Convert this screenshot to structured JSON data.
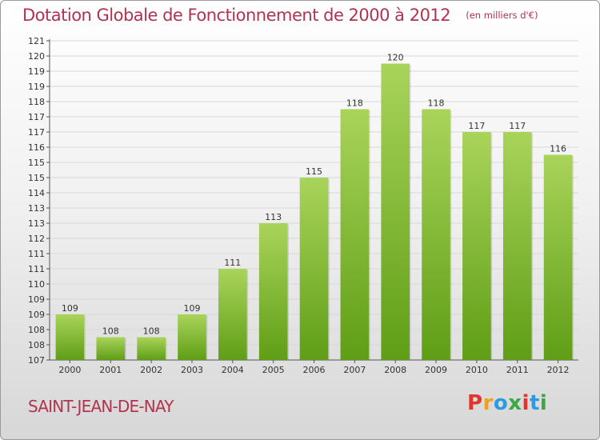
{
  "header": {
    "title": "Dotation Globale de Fonctionnement de 2000 à 2012",
    "subtitle": "(en milliers d'€)"
  },
  "footer": {
    "commune": "SAINT-JEAN-DE-NAY",
    "logo_text": "Proxiti",
    "logo_colors": [
      "#e2352c",
      "#f0a020",
      "#2e9be0",
      "#3da843",
      "#e2352c",
      "#2e9be0",
      "#3da843"
    ]
  },
  "colors": {
    "bar_top": "#a9d45a",
    "bar_bottom": "#5f9e16",
    "grid": "#d8d8d8",
    "title": "#b0344f"
  },
  "chart_data": {
    "type": "bar",
    "title": "Dotation Globale de Fonctionnement de 2000 à 2012",
    "subtitle": "(en milliers d'€)",
    "categories": [
      "2000",
      "2001",
      "2002",
      "2003",
      "2004",
      "2005",
      "2006",
      "2007",
      "2008",
      "2009",
      "2010",
      "2011",
      "2012"
    ],
    "values": [
      109,
      108,
      108,
      109,
      111,
      113,
      115,
      118,
      120,
      118,
      117,
      117,
      116
    ],
    "value_labels": [
      "109",
      "108",
      "108",
      "109",
      "111",
      "113",
      "115",
      "118",
      "120",
      "118",
      "117",
      "117",
      "116"
    ],
    "y_tick_labels": [
      "107",
      "108",
      "108",
      "109",
      "109",
      "110",
      "111",
      "111",
      "112",
      "113",
      "113",
      "114",
      "115",
      "115",
      "116",
      "117",
      "117",
      "118",
      "119",
      "119",
      "120",
      "121"
    ],
    "ylim": [
      107,
      121
    ],
    "xlabel": "",
    "ylabel": "",
    "grid": true,
    "legend": "none"
  }
}
